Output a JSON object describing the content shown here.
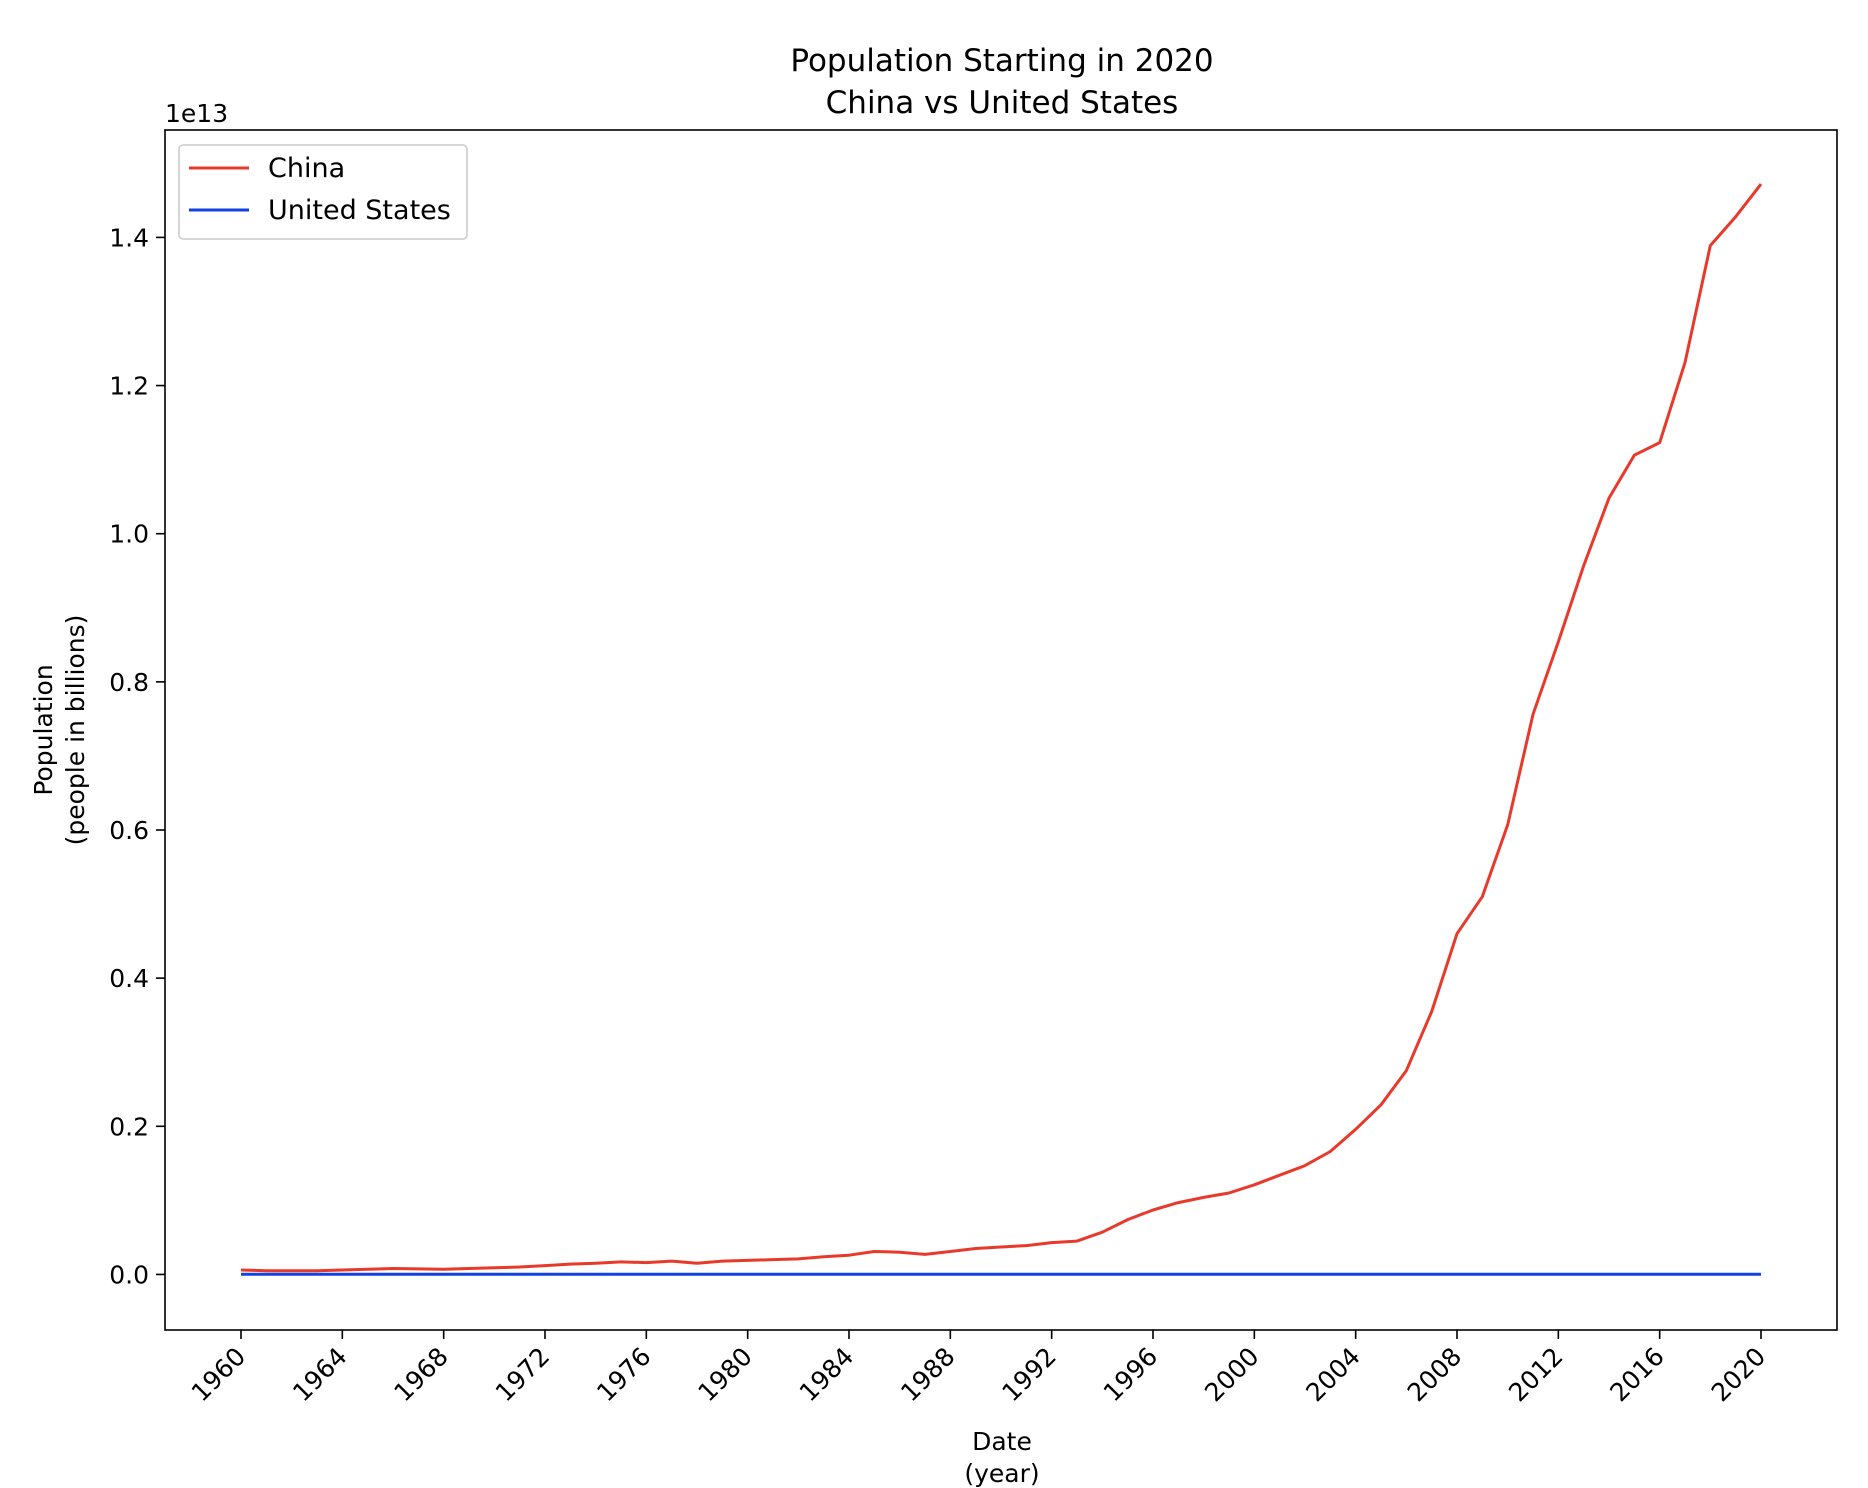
{
  "chart_data": {
    "type": "line",
    "title": [
      "Population Starting in 2020",
      "China vs United States"
    ],
    "xlabel": [
      "Date",
      "(year)"
    ],
    "ylabel": [
      "Population",
      "(people in billions)"
    ],
    "y_offset_text": "1e13",
    "y_scale_multiplier": 10000000000000.0,
    "xlim": [
      1957,
      2023
    ],
    "ylim": [
      -0.075,
      1.545
    ],
    "xticks": [
      1960,
      1964,
      1968,
      1972,
      1976,
      1980,
      1984,
      1988,
      1992,
      1996,
      2000,
      2004,
      2008,
      2012,
      2016,
      2020
    ],
    "yticks": [
      0.0,
      0.2,
      0.4,
      0.6,
      0.8,
      1.0,
      1.2,
      1.4
    ],
    "ytick_labels": [
      "0.0",
      "0.2",
      "0.4",
      "0.6",
      "0.8",
      "1.0",
      "1.2",
      "1.4"
    ],
    "grid": false,
    "legend_position": "top-left",
    "x": [
      1960,
      1961,
      1962,
      1963,
      1964,
      1965,
      1966,
      1967,
      1968,
      1969,
      1970,
      1971,
      1972,
      1973,
      1974,
      1975,
      1976,
      1977,
      1978,
      1979,
      1980,
      1981,
      1982,
      1983,
      1984,
      1985,
      1986,
      1987,
      1988,
      1989,
      1990,
      1991,
      1992,
      1993,
      1994,
      1995,
      1996,
      1997,
      1998,
      1999,
      2000,
      2001,
      2002,
      2003,
      2004,
      2005,
      2006,
      2007,
      2008,
      2009,
      2010,
      2011,
      2012,
      2013,
      2014,
      2015,
      2016,
      2017,
      2018,
      2019,
      2020
    ],
    "series": [
      {
        "name": "China",
        "color": "#e8392b",
        "values": [
          0.006,
          0.005,
          0.005,
          0.005,
          0.006,
          0.007,
          0.008,
          0.0075,
          0.007,
          0.008,
          0.009,
          0.01,
          0.012,
          0.014,
          0.015,
          0.017,
          0.016,
          0.018,
          0.015,
          0.018,
          0.019,
          0.02,
          0.021,
          0.024,
          0.026,
          0.031,
          0.03,
          0.027,
          0.031,
          0.035,
          0.037,
          0.039,
          0.043,
          0.045,
          0.057,
          0.074,
          0.087,
          0.097,
          0.104,
          0.11,
          0.121,
          0.134,
          0.147,
          0.166,
          0.196,
          0.229,
          0.275,
          0.355,
          0.46,
          0.51,
          0.607,
          0.756,
          0.854,
          0.957,
          1.048,
          1.106,
          1.123,
          1.231,
          1.389,
          1.428,
          1.472
        ]
      },
      {
        "name": "United States",
        "color": "#1340e0",
        "values": [
          0.0002,
          0.0002,
          0.0002,
          0.0002,
          0.0002,
          0.0002,
          0.0002,
          0.0002,
          0.0002,
          0.0002,
          0.0002,
          0.0002,
          0.0002,
          0.0002,
          0.0002,
          0.0002,
          0.0002,
          0.0002,
          0.0002,
          0.0002,
          0.0002,
          0.0002,
          0.0002,
          0.0002,
          0.0002,
          0.0002,
          0.0002,
          0.0002,
          0.0002,
          0.0002,
          0.0002,
          0.0002,
          0.0002,
          0.0002,
          0.0002,
          0.0002,
          0.0002,
          0.0002,
          0.0002,
          0.0002,
          0.0002,
          0.0002,
          0.0002,
          0.0002,
          0.0002,
          0.0002,
          0.0002,
          0.0002,
          0.0002,
          0.0002,
          0.0002,
          0.0002,
          0.0002,
          0.0002,
          0.0002,
          0.0002,
          0.0002,
          0.0002,
          0.0002,
          0.0002,
          0.0002
        ]
      }
    ]
  }
}
